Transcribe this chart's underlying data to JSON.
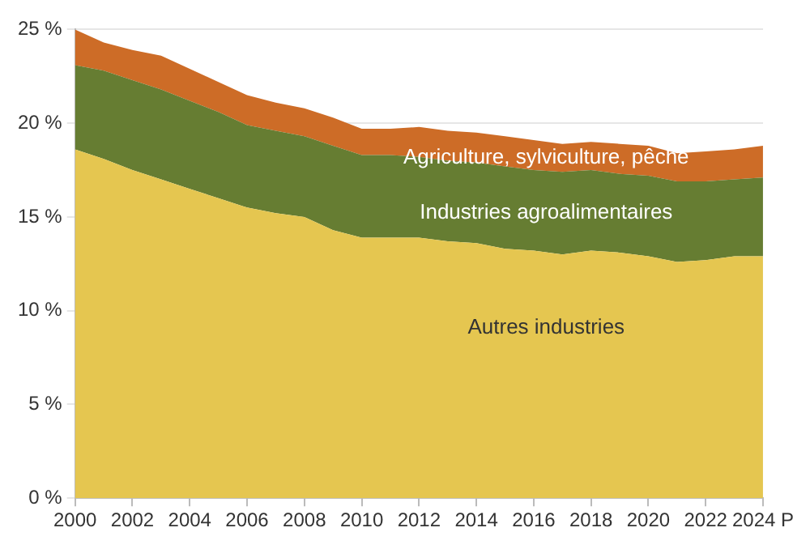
{
  "chart_data": {
    "type": "area",
    "stacked": true,
    "categories": [
      "2000",
      null,
      "2002",
      null,
      "2004",
      null,
      "2006",
      null,
      "2008",
      null,
      "2010",
      null,
      "2012",
      null,
      "2014",
      null,
      "2016",
      null,
      "2018",
      null,
      "2020",
      null,
      "2022",
      null,
      "2024 P"
    ],
    "series": [
      {
        "name": "Autres industries",
        "color": "#e5c650",
        "values": [
          18.6,
          18.1,
          17.5,
          17.0,
          16.5,
          16.0,
          15.5,
          15.2,
          15.0,
          14.3,
          13.9,
          13.9,
          13.9,
          13.7,
          13.6,
          13.3,
          13.2,
          13.0,
          13.2,
          13.1,
          12.9,
          12.6,
          12.7,
          12.9,
          12.9
        ]
      },
      {
        "name": "Industries agroalimentaires",
        "color": "#667d32",
        "values": [
          4.5,
          4.7,
          4.8,
          4.8,
          4.7,
          4.6,
          4.4,
          4.4,
          4.3,
          4.5,
          4.4,
          4.4,
          4.3,
          4.3,
          4.3,
          4.4,
          4.3,
          4.4,
          4.3,
          4.2,
          4.3,
          4.3,
          4.2,
          4.1,
          4.2
        ]
      },
      {
        "name": "Agriculture, sylviculture, pêche",
        "color": "#cd6c27",
        "values": [
          1.9,
          1.5,
          1.6,
          1.8,
          1.7,
          1.6,
          1.6,
          1.5,
          1.5,
          1.5,
          1.4,
          1.4,
          1.6,
          1.6,
          1.6,
          1.6,
          1.6,
          1.5,
          1.5,
          1.6,
          1.6,
          1.5,
          1.6,
          1.6,
          1.7
        ]
      }
    ],
    "ylim": [
      0,
      25
    ],
    "yticks": [
      {
        "value": 0,
        "label": "0 %"
      },
      {
        "value": 5,
        "label": "5 %"
      },
      {
        "value": 10,
        "label": "10 %"
      },
      {
        "value": 15,
        "label": "15 %"
      },
      {
        "value": 20,
        "label": "20 %"
      },
      {
        "value": 25,
        "label": "25 %"
      }
    ],
    "grid": "y",
    "legend": false
  }
}
